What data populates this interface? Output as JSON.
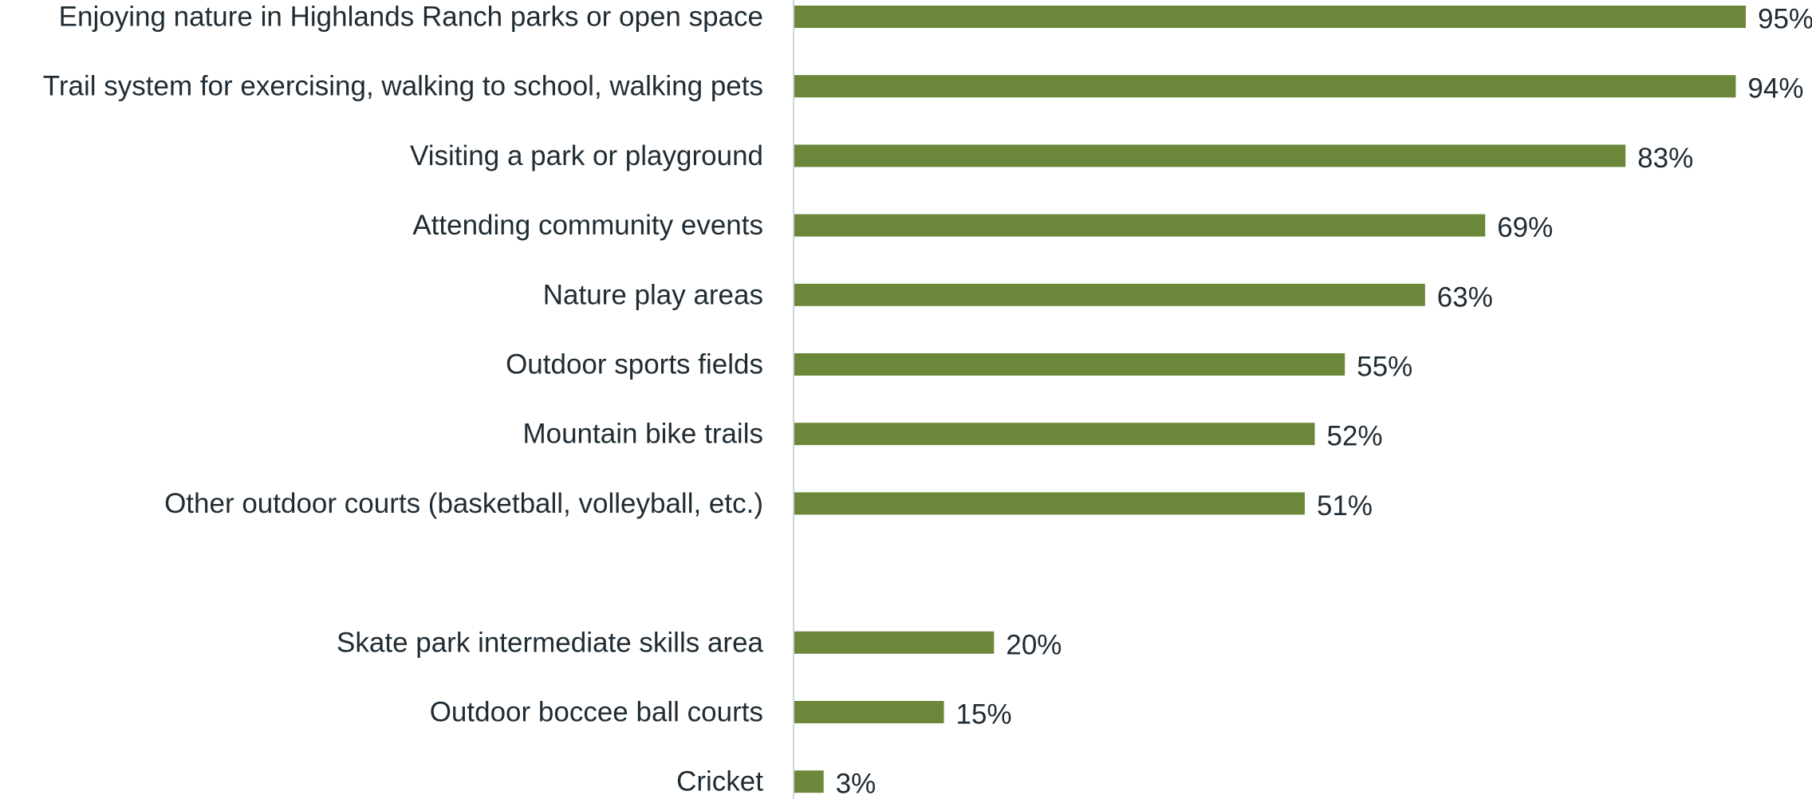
{
  "chart_data": {
    "type": "bar",
    "orientation": "horizontal",
    "categories": [
      "Enjoying nature in Highlands Ranch parks or open space",
      "Trail system for exercising, walking to school, walking pets",
      "Visiting a park or playground",
      "Attending community events",
      "Nature play areas",
      "Outdoor sports fields",
      "Mountain bike trails",
      "Other outdoor courts (basketball, volleyball, etc.)",
      "",
      "Skate park intermediate skills area",
      "Outdoor boccee ball courts",
      "Cricket"
    ],
    "values": [
      95,
      94,
      83,
      69,
      63,
      55,
      52,
      51,
      null,
      20,
      15,
      3
    ],
    "value_labels": [
      "95%",
      "94%",
      "83%",
      "69%",
      "63%",
      "55%",
      "52%",
      "51%",
      "",
      "20%",
      "15%",
      "3%"
    ],
    "xlim": [
      0,
      100
    ],
    "grid": false,
    "legend": "none",
    "title": "",
    "xlabel": "",
    "ylabel": ""
  },
  "colors": {
    "bar": "#6b873a",
    "axis": "#c9d6dc",
    "text": "#1f2b33"
  }
}
